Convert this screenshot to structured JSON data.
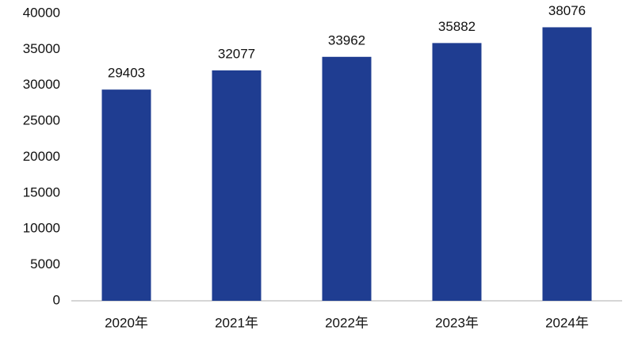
{
  "chart_data": {
    "type": "bar",
    "categories": [
      "2020年",
      "2021年",
      "2022年",
      "2023年",
      "2024年"
    ],
    "values": [
      29403,
      32077,
      33962,
      35882,
      38076
    ],
    "color": "#1f3d91",
    "ylim": [
      0,
      40000
    ],
    "yticks": [
      0,
      5000,
      10000,
      15000,
      20000,
      25000,
      30000,
      35000,
      40000
    ],
    "grid": false
  }
}
